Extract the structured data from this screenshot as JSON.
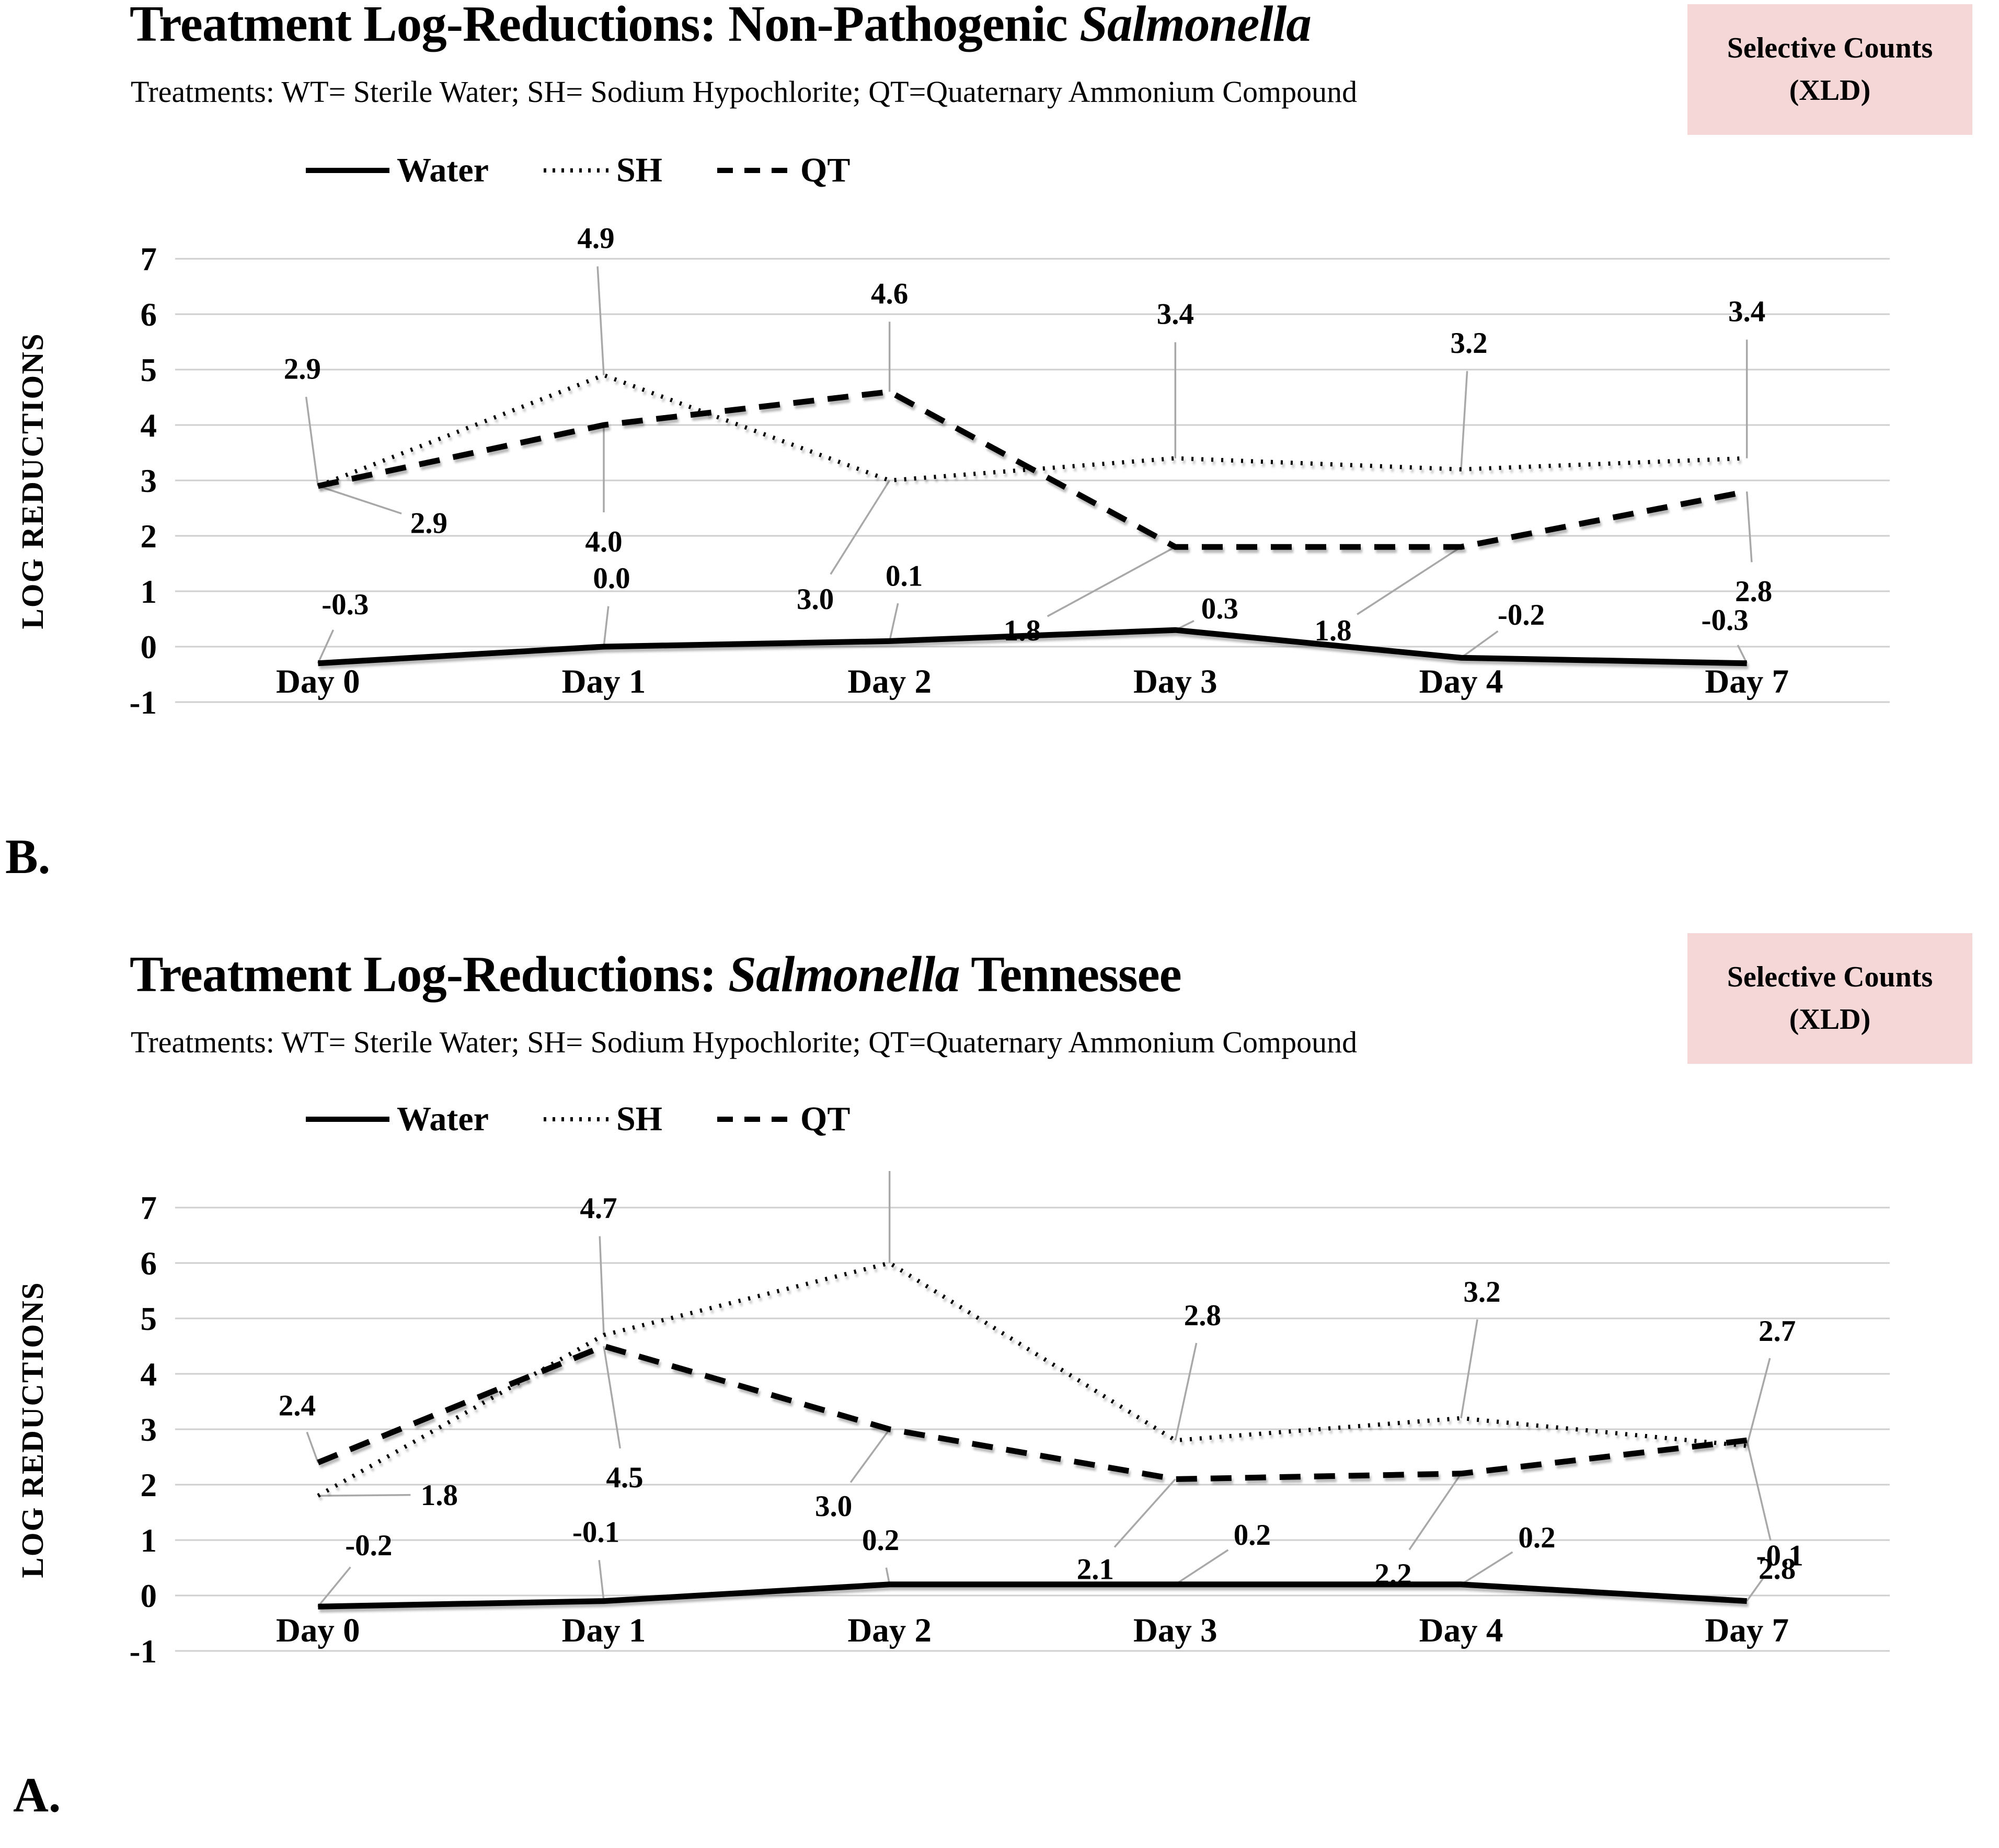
{
  "page": {
    "background": "#ffffff"
  },
  "panels": [
    {
      "letter": "B.",
      "title_prefix": "Treatment Log-Reductions: Non-Pathogenic ",
      "title_italic": "Salmonella",
      "title_suffix": "",
      "subtitle": "Treatments: WT= Sterile Water; SH= Sodium Hypochlorite; QT=Quaternary Ammonium Compound",
      "badge": {
        "line1": "Selective Counts",
        "line2": "(XLD)",
        "bg": "#f5d7d7"
      },
      "legend": [
        {
          "label": "Water",
          "style": "solid"
        },
        {
          "label": "SH",
          "style": "dotted"
        },
        {
          "label": "QT",
          "style": "dashed"
        }
      ],
      "chart_data": {
        "type": "line",
        "title": "Treatment Log-Reductions: Non-Pathogenic Salmonella",
        "categories": [
          "Day 0",
          "Day 1",
          "Day 2",
          "Day 3",
          "Day 4",
          "Day 7"
        ],
        "xlabel": "",
        "ylabel": "LOG REDUCTIONS",
        "ylim": [
          -1,
          7
        ],
        "yticks": [
          7,
          6,
          5,
          4,
          3,
          2,
          1,
          0,
          -1
        ],
        "grid": true,
        "legend_position": "top-left",
        "series": [
          {
            "name": "Water",
            "style": "solid",
            "values": [
              -0.3,
              0.0,
              0.1,
              0.3,
              -0.2,
              -0.3
            ],
            "label_offsets": [
              [
                52,
                -114
              ],
              [
                15,
                -132
              ],
              [
                28,
                -126
              ],
              [
                85,
                -42
              ],
              [
                115,
                -83
              ],
              [
                -42,
                -84
              ]
            ]
          },
          {
            "name": "SH",
            "style": "dotted",
            "values": [
              2.9,
              4.9,
              3.0,
              3.4,
              3.2,
              3.4
            ],
            "label_offsets": [
              [
                -30,
                -225
              ],
              [
                -15,
                -263
              ],
              [
                -142,
                226
              ],
              [
                0,
                -277
              ],
              [
                15,
                -243
              ],
              [
                0,
                -282
              ]
            ]
          },
          {
            "name": "QT",
            "style": "dashed",
            "values": [
              2.9,
              4.0,
              4.6,
              1.8,
              1.8,
              2.8
            ],
            "label_offsets": [
              [
                212,
                70
              ],
              [
                0,
                222
              ],
              [
                0,
                -189
              ],
              [
                -293,
                159
              ],
              [
                -245,
                159
              ],
              [
                13,
                190
              ]
            ]
          }
        ]
      }
    },
    {
      "letter": "A.",
      "title_prefix": "Treatment Log-Reductions: ",
      "title_italic": "Salmonella",
      "title_suffix": " Tennessee",
      "subtitle": "Treatments: WT= Sterile Water; SH= Sodium Hypochlorite; QT=Quaternary Ammonium Compound",
      "badge": {
        "line1": "Selective Counts",
        "line2": "(XLD)",
        "bg": "#f5d7d7"
      },
      "legend": [
        {
          "label": "Water",
          "style": "solid"
        },
        {
          "label": "SH",
          "style": "dotted"
        },
        {
          "label": "QT",
          "style": "dashed"
        }
      ],
      "chart_data": {
        "type": "line",
        "title": "Treatment Log-Reductions: Salmonella Tennessee",
        "categories": [
          "Day 0",
          "Day 1",
          "Day 2",
          "Day 3",
          "Day 4",
          "Day 7"
        ],
        "xlabel": "",
        "ylabel": "LOG REDUCTIONS",
        "ylim": [
          -1,
          7
        ],
        "yticks": [
          7,
          6,
          5,
          4,
          3,
          2,
          1,
          0,
          -1
        ],
        "grid": true,
        "legend_position": "top-left",
        "series": [
          {
            "name": "Water",
            "style": "solid",
            "values": [
              -0.2,
              -0.1,
              0.2,
              0.2,
              0.2,
              -0.1
            ],
            "label_offsets": [
              [
                97,
                -118
              ],
              [
                -15,
                -133
              ],
              [
                -17,
                -86
              ],
              [
                147,
                -96
              ],
              [
                145,
                -91
              ],
              [
                63,
                -88
              ]
            ]
          },
          {
            "name": "SH",
            "style": "dotted",
            "values": [
              1.8,
              4.7,
              6.0,
              2.8,
              3.2,
              2.7
            ],
            "label_offsets": [
              [
                232,
                -2
              ],
              [
                -10,
                -244
              ],
              [
                0,
                -231
              ],
              [
                52,
                -240
              ],
              [
                40,
                -243
              ],
              [
                58,
                -221
              ]
            ]
          },
          {
            "name": "QT",
            "style": "dashed",
            "values": [
              2.4,
              4.5,
              3.0,
              2.1,
              2.2,
              2.8
            ],
            "label_offsets": [
              [
                -40,
                -110
              ],
              [
                40,
                250
              ],
              [
                -107,
                146
              ],
              [
                -153,
                171
              ],
              [
                -130,
                191
              ],
              [
                58,
                245
              ]
            ]
          }
        ]
      }
    }
  ]
}
